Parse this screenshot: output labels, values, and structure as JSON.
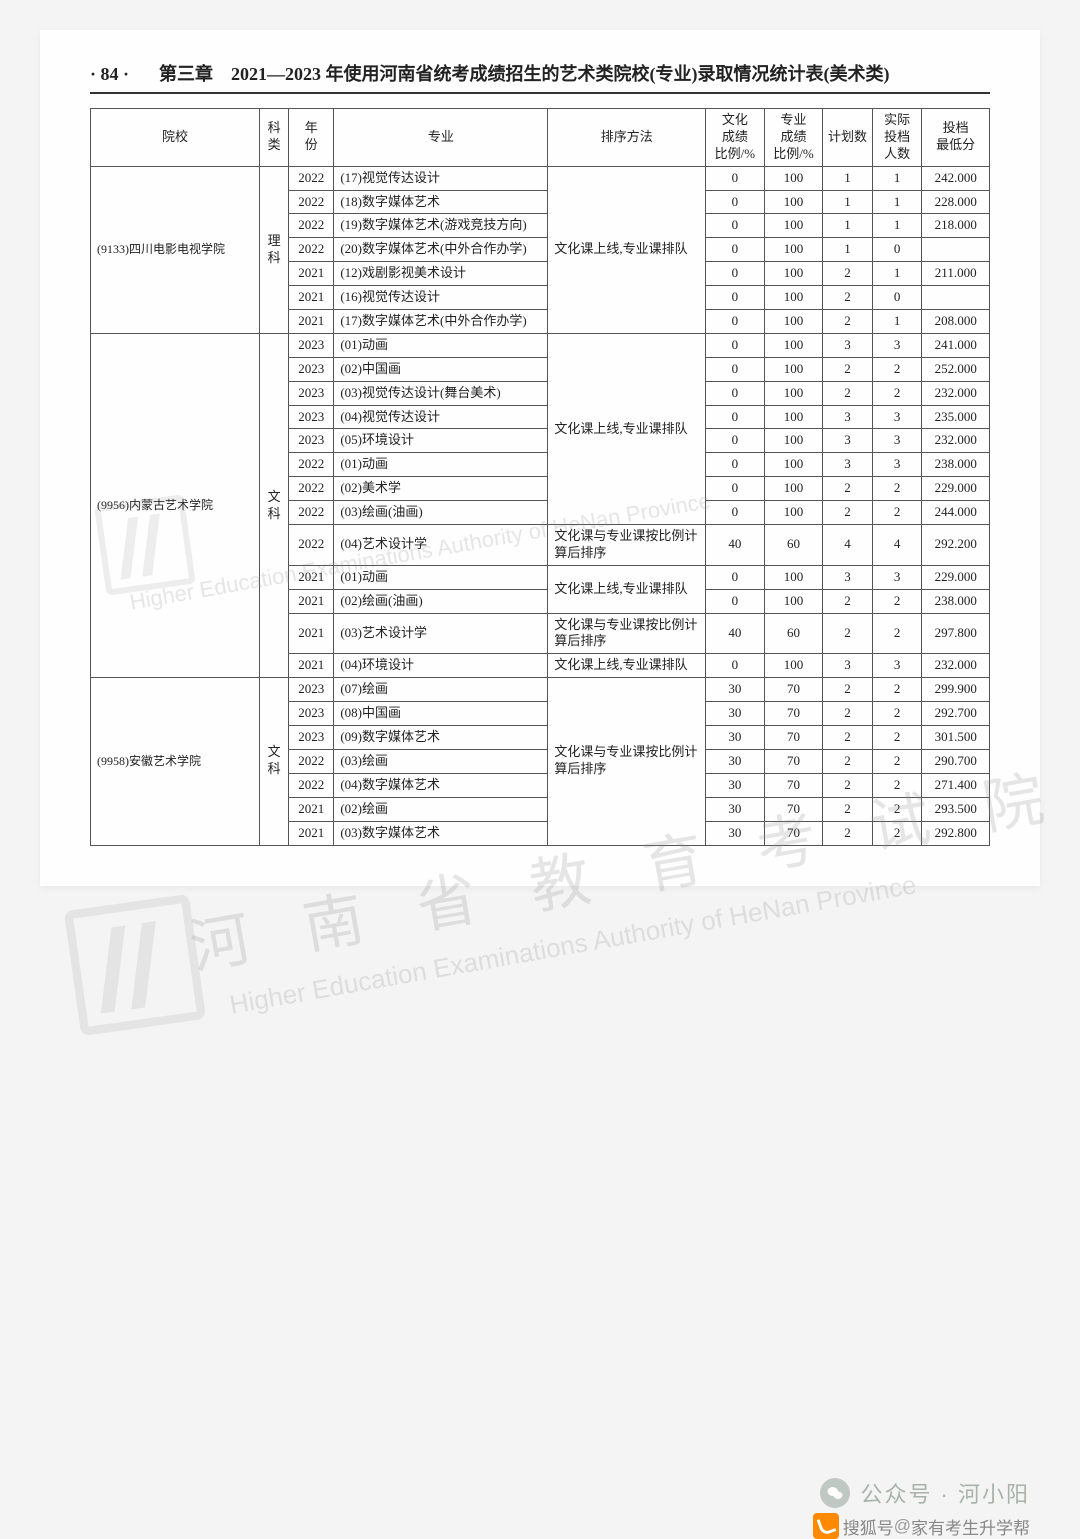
{
  "page_number": "· 84 ·",
  "chapter_title": "第三章　2021—2023 年使用河南省统考成绩招生的艺术类院校(专业)录取情况统计表(美术类)",
  "columns": [
    "院校",
    "科类",
    "年份",
    "专业",
    "排序方法",
    "文化成绩比例/%",
    "专业成绩比例/%",
    "计划数",
    "实际投档人数",
    "投档最低分"
  ],
  "col_widths": [
    "150",
    "26",
    "40",
    "190",
    "140",
    "52",
    "52",
    "44",
    "44",
    "60"
  ],
  "watermark_cn": "河 南 省 教 育 考 试 院",
  "watermark_en": "Higher Education Examinations Authority of HeNan Province",
  "footer": {
    "wechat_label": "公众号 · 河小阳",
    "sohu_label": "搜狐号",
    "sohu_sub": "家有考生升学帮"
  },
  "schools": [
    {
      "name": "(9133)四川电影电视学院",
      "subject": "理科",
      "sort_blocks": [
        {
          "method": "文化课上线,专业课排队",
          "rows": [
            {
              "year": "2022",
              "major": "(17)视觉传达设计",
              "wen": "0",
              "zhuan": "100",
              "plan": "1",
              "actual": "1",
              "score": "242.000"
            },
            {
              "year": "2022",
              "major": "(18)数字媒体艺术",
              "wen": "0",
              "zhuan": "100",
              "plan": "1",
              "actual": "1",
              "score": "228.000"
            },
            {
              "year": "2022",
              "major": "(19)数字媒体艺术(游戏竞技方向)",
              "wen": "0",
              "zhuan": "100",
              "plan": "1",
              "actual": "1",
              "score": "218.000"
            },
            {
              "year": "2022",
              "major": "(20)数字媒体艺术(中外合作办学)",
              "wen": "0",
              "zhuan": "100",
              "plan": "1",
              "actual": "0",
              "score": ""
            },
            {
              "year": "2021",
              "major": "(12)戏剧影视美术设计",
              "wen": "0",
              "zhuan": "100",
              "plan": "2",
              "actual": "1",
              "score": "211.000"
            },
            {
              "year": "2021",
              "major": "(16)视觉传达设计",
              "wen": "0",
              "zhuan": "100",
              "plan": "2",
              "actual": "0",
              "score": ""
            },
            {
              "year": "2021",
              "major": "(17)数字媒体艺术(中外合作办学)",
              "wen": "0",
              "zhuan": "100",
              "plan": "2",
              "actual": "1",
              "score": "208.000"
            }
          ]
        }
      ]
    },
    {
      "name": "(9956)内蒙古艺术学院",
      "subject": "文科",
      "sort_blocks": [
        {
          "method": "文化课上线,专业课排队",
          "rows": [
            {
              "year": "2023",
              "major": "(01)动画",
              "wen": "0",
              "zhuan": "100",
              "plan": "3",
              "actual": "3",
              "score": "241.000"
            },
            {
              "year": "2023",
              "major": "(02)中国画",
              "wen": "0",
              "zhuan": "100",
              "plan": "2",
              "actual": "2",
              "score": "252.000"
            },
            {
              "year": "2023",
              "major": "(03)视觉传达设计(舞台美术)",
              "wen": "0",
              "zhuan": "100",
              "plan": "2",
              "actual": "2",
              "score": "232.000"
            },
            {
              "year": "2023",
              "major": "(04)视觉传达设计",
              "wen": "0",
              "zhuan": "100",
              "plan": "3",
              "actual": "3",
              "score": "235.000"
            },
            {
              "year": "2023",
              "major": "(05)环境设计",
              "wen": "0",
              "zhuan": "100",
              "plan": "3",
              "actual": "3",
              "score": "232.000"
            },
            {
              "year": "2022",
              "major": "(01)动画",
              "wen": "0",
              "zhuan": "100",
              "plan": "3",
              "actual": "3",
              "score": "238.000"
            },
            {
              "year": "2022",
              "major": "(02)美术学",
              "wen": "0",
              "zhuan": "100",
              "plan": "2",
              "actual": "2",
              "score": "229.000"
            },
            {
              "year": "2022",
              "major": "(03)绘画(油画)",
              "wen": "0",
              "zhuan": "100",
              "plan": "2",
              "actual": "2",
              "score": "244.000"
            }
          ]
        },
        {
          "method": "文化课与专业课按比例计算后排序",
          "rows": [
            {
              "year": "2022",
              "major": "(04)艺术设计学",
              "wen": "40",
              "zhuan": "60",
              "plan": "4",
              "actual": "4",
              "score": "292.200"
            }
          ]
        },
        {
          "method": "文化课上线,专业课排队",
          "rows": [
            {
              "year": "2021",
              "major": "(01)动画",
              "wen": "0",
              "zhuan": "100",
              "plan": "3",
              "actual": "3",
              "score": "229.000"
            },
            {
              "year": "2021",
              "major": "(02)绘画(油画)",
              "wen": "0",
              "zhuan": "100",
              "plan": "2",
              "actual": "2",
              "score": "238.000"
            }
          ]
        },
        {
          "method": "文化课与专业课按比例计算后排序",
          "rows": [
            {
              "year": "2021",
              "major": "(03)艺术设计学",
              "wen": "40",
              "zhuan": "60",
              "plan": "2",
              "actual": "2",
              "score": "297.800"
            }
          ]
        },
        {
          "method": "文化课上线,专业课排队",
          "rows": [
            {
              "year": "2021",
              "major": "(04)环境设计",
              "wen": "0",
              "zhuan": "100",
              "plan": "3",
              "actual": "3",
              "score": "232.000"
            }
          ]
        }
      ]
    },
    {
      "name": "(9958)安徽艺术学院",
      "subject": "文科",
      "sort_blocks": [
        {
          "method": "文化课与专业课按比例计算后排序",
          "rows": [
            {
              "year": "2023",
              "major": "(07)绘画",
              "wen": "30",
              "zhuan": "70",
              "plan": "2",
              "actual": "2",
              "score": "299.900"
            },
            {
              "year": "2023",
              "major": "(08)中国画",
              "wen": "30",
              "zhuan": "70",
              "plan": "2",
              "actual": "2",
              "score": "292.700"
            },
            {
              "year": "2023",
              "major": "(09)数字媒体艺术",
              "wen": "30",
              "zhuan": "70",
              "plan": "2",
              "actual": "2",
              "score": "301.500"
            },
            {
              "year": "2022",
              "major": "(03)绘画",
              "wen": "30",
              "zhuan": "70",
              "plan": "2",
              "actual": "2",
              "score": "290.700"
            },
            {
              "year": "2022",
              "major": "(04)数字媒体艺术",
              "wen": "30",
              "zhuan": "70",
              "plan": "2",
              "actual": "2",
              "score": "271.400"
            },
            {
              "year": "2021",
              "major": "(02)绘画",
              "wen": "30",
              "zhuan": "70",
              "plan": "2",
              "actual": "2",
              "score": "293.500"
            },
            {
              "year": "2021",
              "major": "(03)数字媒体艺术",
              "wen": "30",
              "zhuan": "70",
              "plan": "2",
              "actual": "2",
              "score": "292.800"
            }
          ]
        }
      ]
    }
  ]
}
